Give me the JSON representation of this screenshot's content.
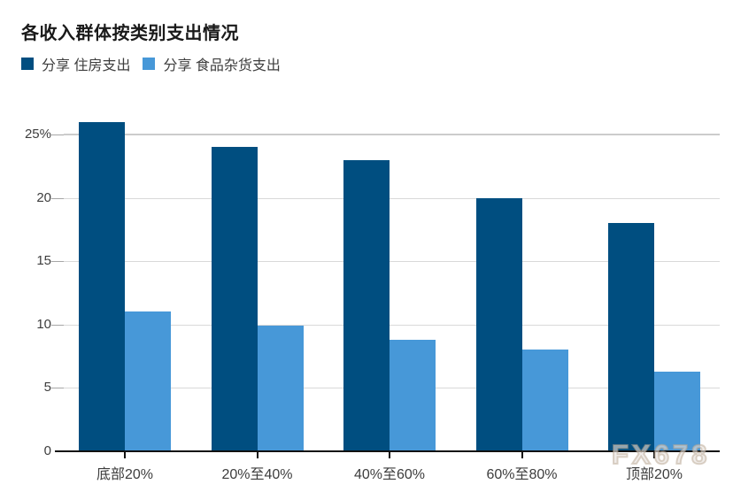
{
  "watermark": "FX678",
  "colors": {
    "housing": "#004e80",
    "groceries": "#4798d8",
    "axis": "#111111",
    "gridline": "#d9d9d9",
    "text": "#3d3d3d",
    "title_text": "#1a1a1a"
  },
  "chart_data": {
    "type": "bar",
    "title": "各收入群体按类别支出情况",
    "categories": [
      "底部20%",
      "20%至40%",
      "40%至60%",
      "60%至80%",
      "顶部20%"
    ],
    "series": [
      {
        "name": "分享 住房支出",
        "color": "#004e80",
        "values": [
          26,
          24,
          23,
          20,
          18
        ]
      },
      {
        "name": "分享 食品杂货支出",
        "color": "#4798d8",
        "values": [
          11,
          9.9,
          8.8,
          8,
          6.3
        ]
      }
    ],
    "xlabel": "",
    "ylabel": "",
    "ylim": [
      0,
      26.5
    ],
    "yticks": [
      {
        "value": 0,
        "label": "0"
      },
      {
        "value": 5,
        "label": "5"
      },
      {
        "value": 10,
        "label": "10"
      },
      {
        "value": 15,
        "label": "15"
      },
      {
        "value": 20,
        "label": "20"
      },
      {
        "value": 25,
        "label": "25%"
      }
    ],
    "grid": true,
    "legend_position": "top-left"
  }
}
